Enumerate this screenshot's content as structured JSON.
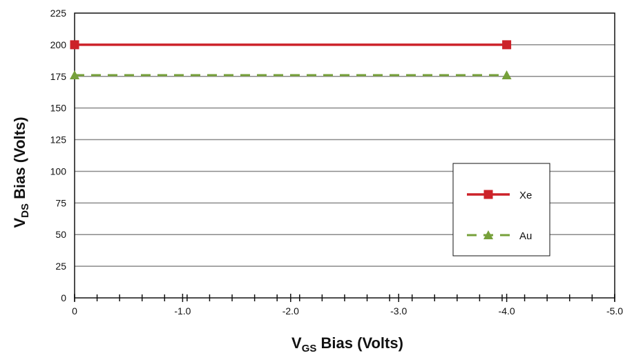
{
  "chart_data": {
    "type": "line",
    "title": "",
    "xlabel": {
      "main": "V",
      "sub": "GS",
      "rest": " Bias (Volts)"
    },
    "ylabel": {
      "main": "V",
      "sub": "DS",
      "rest": " Bias (Volts)"
    },
    "xlim": [
      0,
      -5.0
    ],
    "ylim": [
      0,
      225
    ],
    "x_ticks": [
      {
        "value": 0,
        "label": "0"
      },
      {
        "value": -1.0,
        "label": "-1.0"
      },
      {
        "value": -2.0,
        "label": "-2.0"
      },
      {
        "value": -3.0,
        "label": "-3.0"
      },
      {
        "value": -4.0,
        "label": "-4.0"
      },
      {
        "value": -5.0,
        "label": "-5.0"
      }
    ],
    "x_minor_step": 0.2083,
    "y_ticks": [
      0,
      25,
      50,
      75,
      100,
      125,
      150,
      175,
      200,
      225
    ],
    "grid": "horizontal",
    "legend_position": "center-right",
    "series": [
      {
        "name": "Xe",
        "color": "#cc2229",
        "line": "solid",
        "marker": "square",
        "points": [
          {
            "x": 0,
            "y": 200
          },
          {
            "x": -4.0,
            "y": 200
          }
        ]
      },
      {
        "name": "Au",
        "color": "#76a03a",
        "line": "dashed",
        "marker": "triangle",
        "points": [
          {
            "x": 0,
            "y": 176
          },
          {
            "x": -4.0,
            "y": 176
          }
        ]
      }
    ]
  }
}
